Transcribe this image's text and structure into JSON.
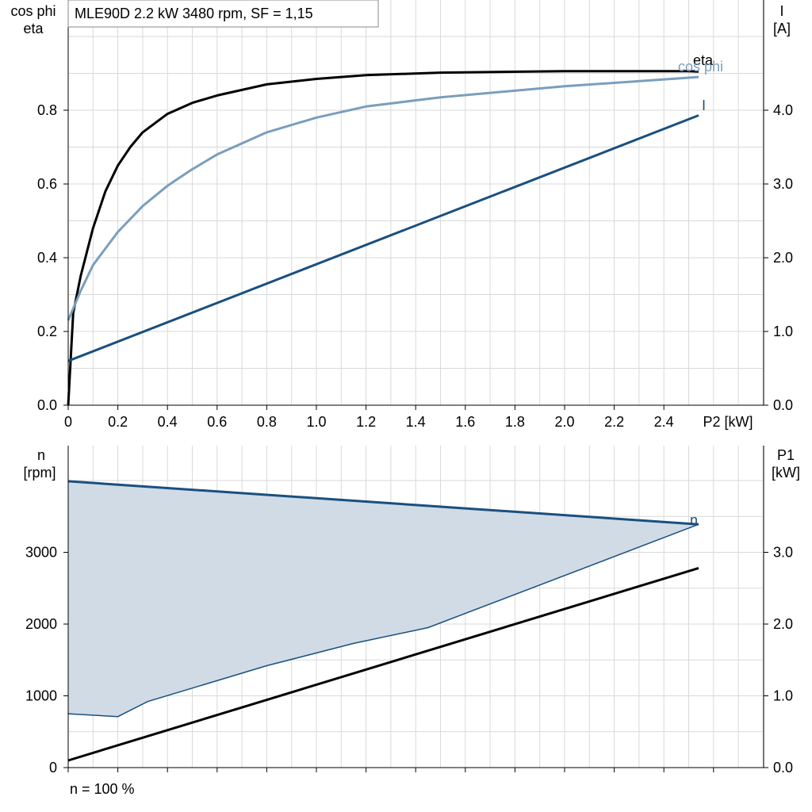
{
  "chart_data": [
    {
      "type": "line",
      "title": "MLE90D   2.2 kW   3480 rpm, SF = 1,15",
      "xlabel": "P2 [kW]",
      "ylabel_left": [
        "cos phi",
        "eta"
      ],
      "ylabel_right": [
        "I",
        "[A]"
      ],
      "xlim": [
        0,
        2.8
      ],
      "ylim_left": [
        0,
        1.0
      ],
      "ylim_right": [
        0,
        5.0
      ],
      "x_ticks": [
        "0",
        "0.2",
        "0.4",
        "0.6",
        "0.8",
        "1.0",
        "1.2",
        "1.4",
        "1.6",
        "1.8",
        "2.0",
        "2.2",
        "2.4"
      ],
      "y_left_ticks": [
        "0.0",
        "0.2",
        "0.4",
        "0.6",
        "0.8"
      ],
      "y_right_ticks": [
        "0.0",
        "1.0",
        "2.0",
        "3.0",
        "4.0"
      ],
      "grid": true,
      "series": [
        {
          "name": "eta",
          "axis": "left",
          "color": "#000000",
          "x": [
            0,
            0.02,
            0.05,
            0.1,
            0.15,
            0.2,
            0.25,
            0.3,
            0.4,
            0.5,
            0.6,
            0.8,
            1.0,
            1.2,
            1.5,
            2.0,
            2.5,
            2.54
          ],
          "y": [
            0,
            0.25,
            0.35,
            0.48,
            0.58,
            0.65,
            0.7,
            0.74,
            0.79,
            0.82,
            0.84,
            0.87,
            0.885,
            0.895,
            0.902,
            0.906,
            0.906,
            0.905
          ]
        },
        {
          "name": "cos phi",
          "axis": "left",
          "color": "#7a9ebd",
          "x": [
            0,
            0.05,
            0.1,
            0.2,
            0.3,
            0.4,
            0.5,
            0.6,
            0.8,
            1.0,
            1.2,
            1.5,
            2.0,
            2.54
          ],
          "y": [
            0.23,
            0.31,
            0.38,
            0.47,
            0.54,
            0.595,
            0.64,
            0.68,
            0.74,
            0.78,
            0.81,
            0.835,
            0.865,
            0.89
          ]
        },
        {
          "name": "I",
          "axis": "right",
          "color": "#1a4f80",
          "x": [
            0,
            2.54
          ],
          "y": [
            0.6,
            3.93
          ]
        }
      ]
    },
    {
      "type": "area",
      "xlabel": "",
      "ylabel_left": [
        "n",
        "[rpm]"
      ],
      "ylabel_right": [
        "P1",
        "[kW]"
      ],
      "xlim": [
        0,
        2.8
      ],
      "ylim_left": [
        0,
        4000
      ],
      "ylim_right": [
        0,
        4.0
      ],
      "y_left_ticks": [
        "0",
        "1000",
        "2000",
        "3000"
      ],
      "y_right_ticks": [
        "0.0",
        "1.0",
        "2.0",
        "3.0"
      ],
      "grid": true,
      "series": [
        {
          "name": "n",
          "axis": "left",
          "color": "#1a4f80",
          "x": [
            0,
            2.54
          ],
          "y": [
            3990,
            3390
          ]
        },
        {
          "name": "",
          "axis": "left",
          "color": "#1a4f80",
          "role": "operating-range-lower-bound",
          "x": [
            0,
            0.2,
            0.32,
            0.8,
            1.15,
            1.45,
            2.54
          ],
          "y": [
            750,
            710,
            920,
            1420,
            1730,
            1950,
            3390
          ]
        },
        {
          "name": "",
          "axis": "right",
          "color": "#000000",
          "x": [
            0,
            2.54
          ],
          "y": [
            0.1,
            2.78
          ]
        }
      ],
      "fill_color": "#d0dbe6"
    }
  ],
  "footnote": "n = 100 %"
}
